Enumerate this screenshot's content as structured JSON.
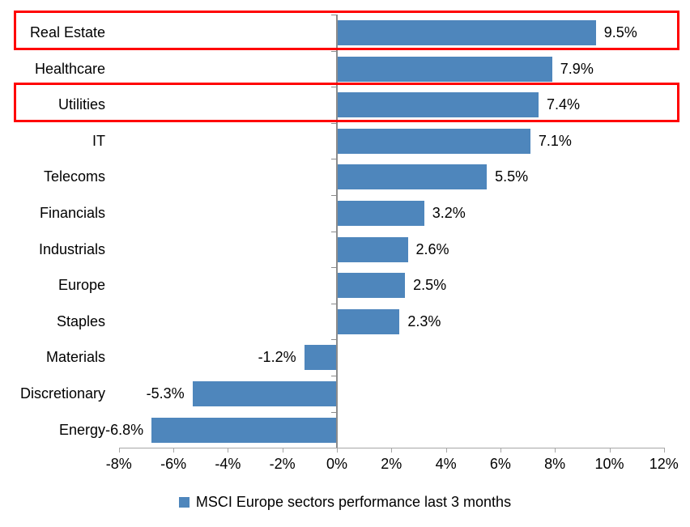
{
  "chart_data": {
    "type": "bar",
    "orientation": "horizontal",
    "title": "",
    "categories": [
      "Real Estate",
      "Healthcare",
      "Utilities",
      "IT",
      "Telecoms",
      "Financials",
      "Industrials",
      "Europe",
      "Staples",
      "Materials",
      "Discretionary",
      "Energy"
    ],
    "values": [
      9.5,
      7.9,
      7.4,
      7.1,
      5.5,
      3.2,
      2.6,
      2.5,
      2.3,
      -1.2,
      -5.3,
      -6.8
    ],
    "value_labels": [
      "9.5%",
      "7.9%",
      "7.4%",
      "7.1%",
      "5.5%",
      "3.2%",
      "2.6%",
      "2.5%",
      "2.3%",
      "-1.2%",
      "-5.3%",
      "-6.8%"
    ],
    "x_tick_labels": [
      "-8%",
      "-6%",
      "-4%",
      "-2%",
      "0%",
      "2%",
      "4%",
      "6%",
      "8%",
      "10%",
      "12%"
    ],
    "x_tick_values": [
      -8,
      -6,
      -4,
      -2,
      0,
      2,
      4,
      6,
      8,
      10,
      12
    ],
    "xlim": [
      -8,
      12
    ],
    "grid": false,
    "legend": {
      "label": "MSCI Europe sectors performance last 3 months",
      "position": "bottom-center"
    },
    "colors": {
      "bar": "#4e86bc",
      "highlight_border": "#ff0000",
      "axis": "#8c8c8c",
      "baseline": "#a6a6a6",
      "text": "#000000",
      "background": "#ffffff"
    },
    "highlighted_categories": [
      "Real Estate",
      "Utilities"
    ]
  }
}
